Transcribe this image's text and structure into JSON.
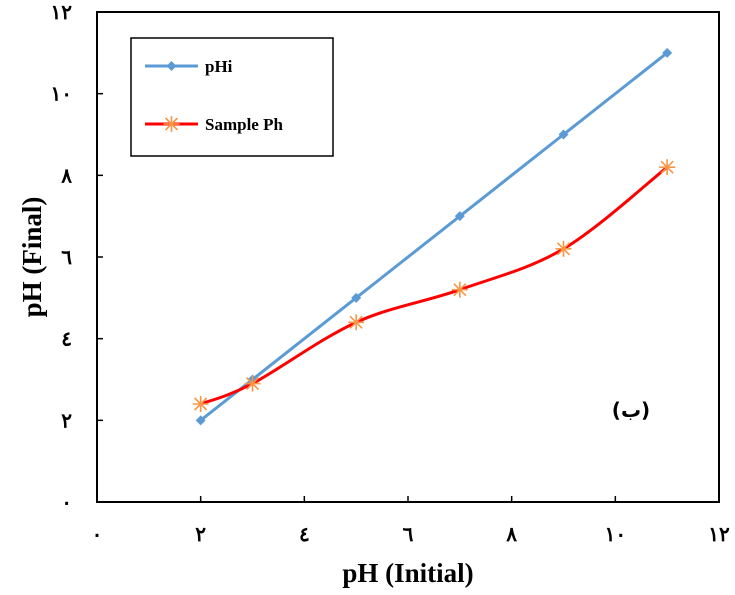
{
  "chart_data": {
    "type": "line",
    "xlabel": "pH (Initial)",
    "ylabel": "pH (Final)",
    "xlim": [
      0,
      12
    ],
    "ylim": [
      0,
      12
    ],
    "xticks": [
      {
        "v": 0,
        "label": "٠"
      },
      {
        "v": 2,
        "label": "٢"
      },
      {
        "v": 4,
        "label": "٤"
      },
      {
        "v": 6,
        "label": "٦"
      },
      {
        "v": 8,
        "label": "٨"
      },
      {
        "v": 10,
        "label": "١٠"
      },
      {
        "v": 12,
        "label": "١٢"
      }
    ],
    "yticks": [
      {
        "v": 0,
        "label": "٠"
      },
      {
        "v": 2,
        "label": "٢"
      },
      {
        "v": 4,
        "label": "٤"
      },
      {
        "v": 6,
        "label": "٦"
      },
      {
        "v": 8,
        "label": "٨"
      },
      {
        "v": 10,
        "label": "١٠"
      },
      {
        "v": 12,
        "label": "١٢"
      }
    ],
    "grid": false,
    "legend_position": "top-left",
    "series": [
      {
        "name": "pHi",
        "color": "#5b9bd5",
        "marker": "diamond",
        "smooth": false,
        "x": [
          2,
          3,
          5,
          7,
          9,
          11
        ],
        "y": [
          2,
          3,
          5,
          7,
          9,
          11
        ]
      },
      {
        "name": "Sample Ph",
        "color": "#ff0000",
        "marker_color": "#f79646",
        "marker": "star",
        "smooth": true,
        "x": [
          2,
          3,
          5,
          7,
          9,
          11
        ],
        "y": [
          2.4,
          2.9,
          4.4,
          5.2,
          6.2,
          8.2
        ]
      }
    ],
    "annotation": "(ب)"
  }
}
